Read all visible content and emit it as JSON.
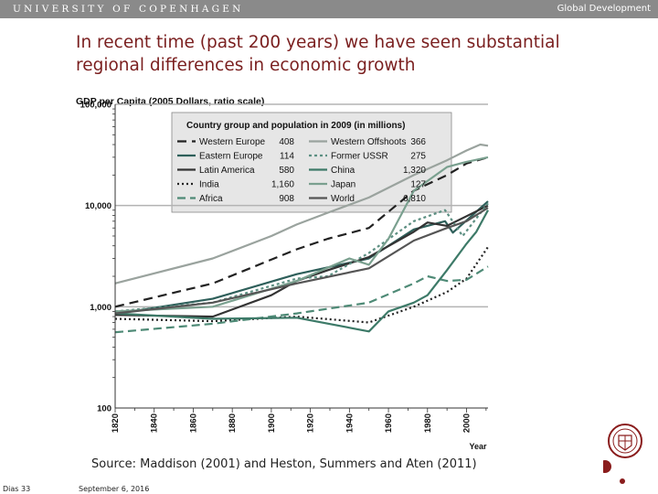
{
  "header": {
    "university": "UNIVERSITY OF COPENHAGEN",
    "course": "Global Development"
  },
  "slide": {
    "title": "In recent time (past 200 years) we have seen substantial regional differences in economic growth",
    "source": "Source: Maddison (2001) and Heston, Summers and Aten (2011)",
    "slide_number": "Dias 33",
    "date": "September 6, 2016"
  },
  "chart_data": {
    "type": "line",
    "title": "GDP per Capita (2005 Dollars, ratio scale)",
    "xlabel": "Year",
    "ylabel": "",
    "yscale": "log",
    "xlim": [
      1820,
      2011
    ],
    "ylim": [
      100,
      100000
    ],
    "x_ticks": [
      1820,
      1840,
      1860,
      1880,
      1900,
      1920,
      1940,
      1960,
      1980,
      2000
    ],
    "y_ticks": [
      {
        "value": 100,
        "label": "100"
      },
      {
        "value": 1000,
        "label": "1,000"
      },
      {
        "value": 10000,
        "label": "10,000"
      },
      {
        "value": 100000,
        "label": "100,000"
      }
    ],
    "legend": {
      "title": "Country group and population in 2009 (in millions)",
      "position": "top"
    },
    "series": [
      {
        "name": "Western Europe",
        "population": "408",
        "color": "#222222",
        "dash": "10,6",
        "points": [
          [
            1820,
            1000
          ],
          [
            1870,
            1700
          ],
          [
            1913,
            3700
          ],
          [
            1929,
            4700
          ],
          [
            1950,
            6000
          ],
          [
            1973,
            14000
          ],
          [
            1990,
            20000
          ],
          [
            2000,
            26000
          ],
          [
            2011,
            30000
          ]
        ]
      },
      {
        "name": "Eastern Europe",
        "population": "114",
        "color": "#2e5f5a",
        "dash": "",
        "points": [
          [
            1820,
            850
          ],
          [
            1870,
            1200
          ],
          [
            1913,
            2100
          ],
          [
            1950,
            3000
          ],
          [
            1973,
            5800
          ],
          [
            1989,
            7000
          ],
          [
            1993,
            5400
          ],
          [
            2011,
            11000
          ]
        ]
      },
      {
        "name": "Latin America",
        "population": "580",
        "color": "#333333",
        "dash": "",
        "points": [
          [
            1820,
            830
          ],
          [
            1870,
            800
          ],
          [
            1900,
            1300
          ],
          [
            1913,
            1800
          ],
          [
            1929,
            2300
          ],
          [
            1950,
            3100
          ],
          [
            1973,
            5500
          ],
          [
            1980,
            6800
          ],
          [
            1990,
            6300
          ],
          [
            2011,
            10000
          ]
        ]
      },
      {
        "name": "India",
        "population": "1,160",
        "color": "#222222",
        "dash": "2,3",
        "points": [
          [
            1820,
            760
          ],
          [
            1870,
            720
          ],
          [
            1913,
            800
          ],
          [
            1950,
            700
          ],
          [
            1973,
            1000
          ],
          [
            1990,
            1400
          ],
          [
            2000,
            1900
          ],
          [
            2011,
            3900
          ]
        ]
      },
      {
        "name": "Africa",
        "population": "908",
        "color": "#4e8a76",
        "dash": "9,5",
        "points": [
          [
            1820,
            560
          ],
          [
            1870,
            680
          ],
          [
            1913,
            860
          ],
          [
            1950,
            1100
          ],
          [
            1973,
            1700
          ],
          [
            1980,
            2000
          ],
          [
            1990,
            1800
          ],
          [
            2000,
            1850
          ],
          [
            2011,
            2500
          ]
        ]
      },
      {
        "name": "Western Offshoots",
        "population": "366",
        "color": "#9aa39e",
        "dash": "",
        "points": [
          [
            1820,
            1700
          ],
          [
            1870,
            3000
          ],
          [
            1900,
            5000
          ],
          [
            1913,
            6500
          ],
          [
            1929,
            8500
          ],
          [
            1950,
            12000
          ],
          [
            1973,
            20000
          ],
          [
            1990,
            28000
          ],
          [
            2000,
            35000
          ],
          [
            2007,
            40000
          ],
          [
            2011,
            39000
          ]
        ]
      },
      {
        "name": "Former USSR",
        "population": "275",
        "color": "#5c8f82",
        "dash": "3,3",
        "points": [
          [
            1820,
            900
          ],
          [
            1870,
            1100
          ],
          [
            1913,
            1900
          ],
          [
            1929,
            2000
          ],
          [
            1950,
            3400
          ],
          [
            1973,
            7000
          ],
          [
            1989,
            9000
          ],
          [
            1998,
            5000
          ],
          [
            2011,
            10500
          ]
        ]
      },
      {
        "name": "China",
        "population": "1,320",
        "color": "#3d7a68",
        "dash": "",
        "points": [
          [
            1820,
            860
          ],
          [
            1870,
            760
          ],
          [
            1913,
            780
          ],
          [
            1950,
            570
          ],
          [
            1960,
            900
          ],
          [
            1973,
            1100
          ],
          [
            1980,
            1300
          ],
          [
            1990,
            2300
          ],
          [
            2000,
            4200
          ],
          [
            2005,
            5500
          ],
          [
            2011,
            9000
          ]
        ]
      },
      {
        "name": "Japan",
        "population": "127",
        "color": "#7aa08f",
        "dash": "",
        "points": [
          [
            1820,
            900
          ],
          [
            1870,
            1000
          ],
          [
            1913,
            1800
          ],
          [
            1940,
            3000
          ],
          [
            1950,
            2600
          ],
          [
            1960,
            4700
          ],
          [
            1973,
            14000
          ],
          [
            1990,
            24000
          ],
          [
            2000,
            27000
          ],
          [
            2011,
            30000
          ]
        ]
      },
      {
        "name": "World",
        "population": "6,810",
        "color": "#555555",
        "dash": "",
        "points": [
          [
            1820,
            860
          ],
          [
            1870,
            1100
          ],
          [
            1913,
            1700
          ],
          [
            1950,
            2400
          ],
          [
            1973,
            4500
          ],
          [
            1990,
            6000
          ],
          [
            2000,
            7000
          ],
          [
            2011,
            9500
          ]
        ]
      }
    ]
  }
}
